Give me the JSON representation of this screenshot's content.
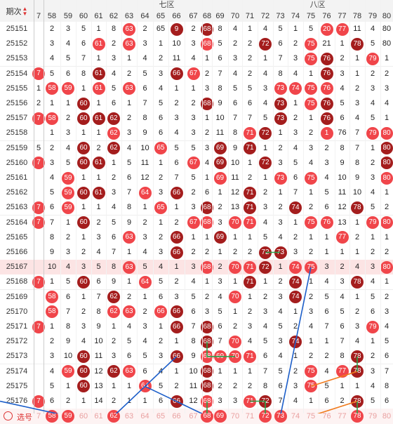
{
  "header": {
    "period_label": "期次",
    "sort_icon": "sort-icon",
    "zones": [
      "七区",
      "八区"
    ],
    "columns": [
      "7",
      "58",
      "59",
      "60",
      "61",
      "62",
      "63",
      "64",
      "65",
      "66",
      "67",
      "68",
      "69",
      "70",
      "71",
      "72",
      "73",
      "74",
      "75",
      "76",
      "77",
      "78",
      "79",
      "80"
    ]
  },
  "rows": [
    {
      "period": "25151",
      "cells": [
        "",
        "2",
        "3",
        "5",
        "1",
        "8",
        "63",
        "2",
        "65",
        "9",
        "2",
        "68",
        "8",
        "4",
        "1",
        "4",
        "5",
        "1",
        "5",
        "20",
        "77",
        "11",
        "4",
        "80"
      ],
      "balls": [
        6,
        9,
        11,
        19,
        20
      ]
    },
    {
      "period": "25152",
      "cells": [
        "",
        "3",
        "4",
        "6",
        "61",
        "2",
        "63",
        "3",
        "1",
        "10",
        "3",
        "68",
        "5",
        "2",
        "2",
        "72",
        "6",
        "2",
        "75",
        "21",
        "1",
        "78",
        "5",
        "80"
      ],
      "balls": [
        4,
        6,
        11,
        15,
        18,
        21
      ]
    },
    {
      "period": "25153",
      "cells": [
        "",
        "4",
        "5",
        "7",
        "1",
        "3",
        "1",
        "4",
        "2",
        "11",
        "4",
        "1",
        "6",
        "3",
        "2",
        "1",
        "7",
        "3",
        "75",
        "76",
        "2",
        "1",
        "79",
        "1"
      ],
      "balls": [
        18,
        19,
        22
      ]
    },
    {
      "period": "25154",
      "cells": [
        "7",
        "5",
        "6",
        "8",
        "61",
        "4",
        "2",
        "5",
        "3",
        "66",
        "67",
        "2",
        "7",
        "4",
        "2",
        "4",
        "8",
        "4",
        "1",
        "76",
        "3",
        "1",
        "2",
        "2"
      ],
      "balls": [
        0,
        4,
        9,
        10,
        19
      ]
    },
    {
      "period": "25155",
      "cells": [
        "1",
        "58",
        "59",
        "1",
        "61",
        "5",
        "63",
        "6",
        "4",
        "1",
        "1",
        "3",
        "8",
        "5",
        "5",
        "3",
        "73",
        "74",
        "75",
        "76",
        "4",
        "2",
        "3",
        "3"
      ],
      "balls": [
        1,
        2,
        4,
        6,
        16,
        17,
        18,
        19
      ]
    },
    {
      "period": "25156",
      "cells": [
        "2",
        "1",
        "1",
        "60",
        "1",
        "6",
        "1",
        "7",
        "5",
        "2",
        "2",
        "68",
        "9",
        "6",
        "6",
        "4",
        "73",
        "1",
        "75",
        "76",
        "5",
        "3",
        "4",
        "4"
      ],
      "balls": [
        3,
        11,
        16,
        18,
        19
      ]
    },
    {
      "period": "25157",
      "cells": [
        "7",
        "58",
        "2",
        "60",
        "61",
        "62",
        "2",
        "8",
        "6",
        "3",
        "3",
        "1",
        "10",
        "7",
        "7",
        "5",
        "73",
        "2",
        "1",
        "76",
        "6",
        "4",
        "5",
        "1"
      ],
      "balls": [
        0,
        1,
        3,
        4,
        5,
        16,
        19
      ]
    },
    {
      "period": "25158",
      "cells": [
        "",
        "1",
        "3",
        "1",
        "1",
        "62",
        "3",
        "9",
        "6",
        "4",
        "3",
        "2",
        "11",
        "8",
        "71",
        "72",
        "1",
        "3",
        "2",
        "1",
        "76",
        "7",
        "79",
        "80"
      ],
      "balls": [
        5,
        14,
        15,
        19,
        22,
        23
      ]
    },
    {
      "period": "25159",
      "cells": [
        "5",
        "2",
        "4",
        "60",
        "2",
        "62",
        "4",
        "10",
        "65",
        "5",
        "5",
        "3",
        "69",
        "9",
        "71",
        "1",
        "2",
        "4",
        "3",
        "2",
        "8",
        "7",
        "1",
        "80"
      ],
      "balls": [
        3,
        5,
        8,
        12,
        14,
        23
      ]
    },
    {
      "period": "25160",
      "cells": [
        "7",
        "3",
        "5",
        "60",
        "61",
        "1",
        "5",
        "11",
        "1",
        "6",
        "67",
        "4",
        "69",
        "10",
        "1",
        "72",
        "3",
        "5",
        "4",
        "3",
        "9",
        "8",
        "2",
        "80"
      ],
      "balls": [
        0,
        3,
        4,
        10,
        12,
        15,
        23
      ]
    },
    {
      "period": "25161",
      "cells": [
        "",
        "4",
        "59",
        "1",
        "1",
        "2",
        "6",
        "12",
        "2",
        "7",
        "5",
        "1",
        "69",
        "11",
        "2",
        "1",
        "73",
        "6",
        "75",
        "4",
        "10",
        "9",
        "3",
        "80"
      ],
      "balls": [
        2,
        12,
        16,
        18,
        23
      ]
    },
    {
      "period": "25162",
      "cells": [
        "",
        "5",
        "59",
        "60",
        "61",
        "3",
        "7",
        "64",
        "3",
        "66",
        "2",
        "6",
        "1",
        "12",
        "71",
        "2",
        "1",
        "7",
        "1",
        "5",
        "11",
        "10",
        "4",
        "1"
      ],
      "balls": [
        2,
        3,
        4,
        7,
        9,
        14
      ]
    },
    {
      "period": "25163",
      "cells": [
        "7",
        "6",
        "59",
        "1",
        "1",
        "4",
        "8",
        "1",
        "65",
        "1",
        "3",
        "68",
        "2",
        "13",
        "71",
        "3",
        "2",
        "74",
        "2",
        "6",
        "12",
        "78",
        "5",
        "2"
      ],
      "balls": [
        0,
        2,
        8,
        11,
        14,
        17,
        21
      ]
    },
    {
      "period": "25164",
      "cells": [
        "7",
        "7",
        "1",
        "60",
        "2",
        "5",
        "9",
        "2",
        "1",
        "2",
        "67",
        "68",
        "3",
        "70",
        "71",
        "4",
        "3",
        "1",
        "75",
        "76",
        "13",
        "1",
        "79",
        "80"
      ],
      "balls": [
        0,
        3,
        10,
        11,
        13,
        14,
        18,
        19,
        22,
        23
      ]
    },
    {
      "period": "25165",
      "cells": [
        "",
        "8",
        "2",
        "1",
        "3",
        "6",
        "63",
        "3",
        "2",
        "66",
        "1",
        "1",
        "69",
        "1",
        "1",
        "5",
        "4",
        "2",
        "1",
        "1",
        "77",
        "2",
        "1",
        "1"
      ],
      "balls": [
        6,
        9,
        12,
        20
      ]
    },
    {
      "period": "25166",
      "cells": [
        "",
        "9",
        "3",
        "2",
        "4",
        "7",
        "1",
        "4",
        "3",
        "66",
        "2",
        "2",
        "1",
        "2",
        "2",
        "72",
        "73",
        "3",
        "2",
        "1",
        "1",
        "1",
        "2",
        "2"
      ],
      "balls": [
        9,
        15,
        16
      ]
    },
    {
      "period": "25167",
      "cells": [
        "",
        "10",
        "4",
        "3",
        "5",
        "8",
        "63",
        "5",
        "4",
        "1",
        "3",
        "68",
        "2",
        "70",
        "71",
        "72",
        "1",
        "74",
        "75",
        "3",
        "2",
        "4",
        "3",
        "80"
      ],
      "balls": [
        6,
        11,
        13,
        14,
        15,
        17,
        18,
        23
      ],
      "highlight": true
    },
    {
      "period": "25168",
      "cells": [
        "7",
        "1",
        "5",
        "60",
        "6",
        "9",
        "1",
        "64",
        "5",
        "2",
        "4",
        "1",
        "3",
        "1",
        "71",
        "1",
        "2",
        "74",
        "1",
        "4",
        "3",
        "78",
        "4",
        "1"
      ],
      "balls": [
        0,
        3,
        7,
        14,
        17,
        21
      ]
    },
    {
      "period": "25169",
      "cells": [
        "",
        "58",
        "6",
        "1",
        "7",
        "62",
        "2",
        "1",
        "6",
        "3",
        "5",
        "2",
        "4",
        "70",
        "1",
        "2",
        "3",
        "74",
        "2",
        "5",
        "4",
        "1",
        "5",
        "2"
      ],
      "balls": [
        1,
        5,
        13,
        17
      ]
    },
    {
      "period": "25170",
      "cells": [
        "",
        "58",
        "7",
        "2",
        "8",
        "62",
        "63",
        "2",
        "66",
        "66",
        "6",
        "3",
        "5",
        "1",
        "2",
        "3",
        "4",
        "1",
        "3",
        "6",
        "5",
        "2",
        "6",
        "3"
      ],
      "balls": [
        1,
        5,
        6,
        8,
        9
      ]
    },
    {
      "period": "25171",
      "cells": [
        "7",
        "1",
        "8",
        "3",
        "9",
        "1",
        "4",
        "3",
        "1",
        "66",
        "7",
        "68",
        "6",
        "2",
        "3",
        "4",
        "5",
        "2",
        "4",
        "7",
        "6",
        "3",
        "79",
        "4"
      ],
      "balls": [
        0,
        9,
        11,
        22
      ]
    },
    {
      "period": "25172",
      "cells": [
        "",
        "2",
        "9",
        "4",
        "10",
        "2",
        "5",
        "4",
        "2",
        "1",
        "8",
        "68",
        "7",
        "70",
        "4",
        "5",
        "3",
        "74",
        "1",
        "1",
        "7",
        "4",
        "1",
        "5"
      ],
      "balls": [
        11,
        13,
        17
      ]
    },
    {
      "period": "25173",
      "cells": [
        "",
        "3",
        "10",
        "60",
        "11",
        "3",
        "6",
        "5",
        "3",
        "66",
        "9",
        "68",
        "69",
        "70",
        "71",
        "6",
        "4",
        "1",
        "2",
        "2",
        "8",
        "78",
        "2",
        "6"
      ],
      "balls": [
        3,
        9,
        11,
        12,
        13,
        14,
        21
      ]
    },
    {
      "period": "25174",
      "cells": [
        "",
        "4",
        "59",
        "60",
        "12",
        "62",
        "63",
        "6",
        "4",
        "1",
        "10",
        "68",
        "1",
        "1",
        "1",
        "7",
        "5",
        "2",
        "75",
        "4",
        "77",
        "78",
        "3",
        "7"
      ],
      "balls": [
        2,
        3,
        5,
        6,
        11,
        18,
        20,
        21
      ]
    },
    {
      "period": "25175",
      "cells": [
        "",
        "5",
        "1",
        "60",
        "13",
        "1",
        "1",
        "64",
        "5",
        "2",
        "11",
        "68",
        "2",
        "2",
        "2",
        "8",
        "6",
        "3",
        "75",
        "5",
        "1",
        "1",
        "4",
        "8"
      ],
      "balls": [
        3,
        7,
        11,
        18
      ]
    },
    {
      "period": "25176",
      "cells": [
        "7",
        "6",
        "2",
        "1",
        "14",
        "2",
        "1",
        "1",
        "6",
        "66",
        "12",
        "68",
        "3",
        "3",
        "71",
        "72",
        "7",
        "4",
        "1",
        "6",
        "2",
        "78",
        "5",
        "6"
      ],
      "balls": [
        0,
        9,
        11,
        14,
        15,
        21
      ]
    }
  ],
  "pick_row": {
    "label": "选号",
    "circle_icon": "radio-circle-icon",
    "cells": [
      "7",
      "58",
      "59",
      "60",
      "61",
      "62",
      "63",
      "64",
      "65",
      "66",
      "67",
      "68",
      "69",
      "70",
      "71",
      "72",
      "73",
      "74",
      "75",
      "76",
      "77",
      "78",
      "79",
      "80"
    ],
    "balls": [
      1,
      2,
      5,
      11,
      12,
      15,
      16,
      21
    ]
  },
  "colors": {
    "ball_light": "#f0454a",
    "ball_dark": "#a41d1d",
    "highlight_row": "#fce4e4",
    "line_blue": "#1c5ec9",
    "line_green": "#2aa24a",
    "line_orange": "#f07a1c",
    "sort_red": "#d33"
  }
}
